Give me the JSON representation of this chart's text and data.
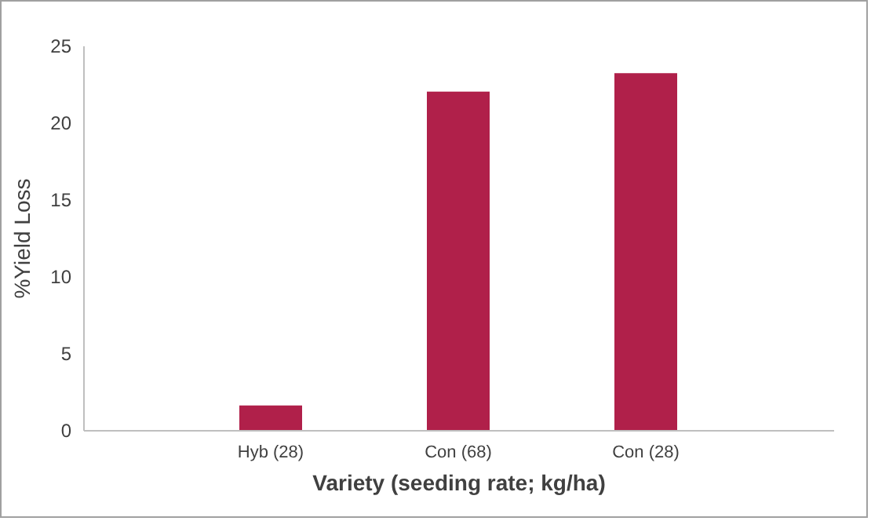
{
  "chart_data": {
    "type": "bar",
    "xlabel": "Variety (seeding rate; kg/ha)",
    "ylabel": "%Yield Loss",
    "categories": [
      "Hyb (28)",
      "Con (68)",
      "Con (28)"
    ],
    "values": [
      1.6,
      22,
      23.2
    ],
    "color": "#b0204a",
    "ylim": [
      0,
      25
    ],
    "yticks": [
      0,
      5,
      10,
      15,
      20,
      25
    ],
    "grid": false
  }
}
